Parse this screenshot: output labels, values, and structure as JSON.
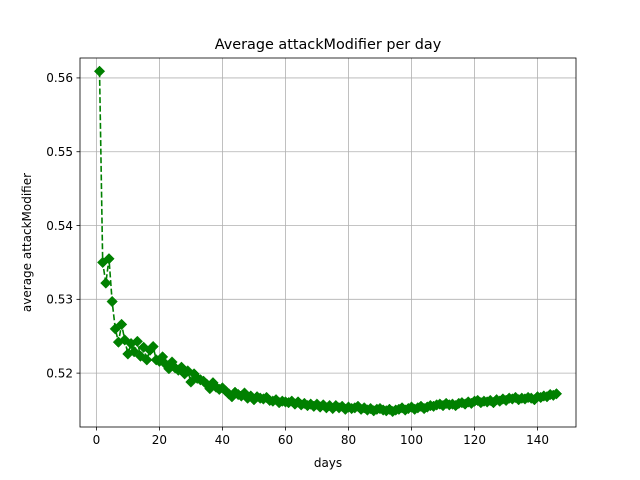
{
  "chart_data": {
    "type": "line",
    "title": "Average attackModifier per day",
    "xlabel": "days",
    "ylabel": "average attackModifier",
    "xlim": [
      -5.2,
      152.2
    ],
    "ylim": [
      0.5127,
      0.5627
    ],
    "x_ticks": [
      0,
      20,
      40,
      60,
      80,
      100,
      120,
      140
    ],
    "y_ticks": [
      0.52,
      0.53,
      0.54,
      0.55,
      0.56
    ],
    "grid": true,
    "series": [
      {
        "color": "#008000",
        "marker": "diamond",
        "linestyle": "dashed",
        "x": [
          1,
          2,
          3,
          4,
          5,
          6,
          7,
          8,
          9,
          10,
          11,
          12,
          13,
          14,
          15,
          16,
          17,
          18,
          19,
          20,
          21,
          22,
          23,
          24,
          25,
          26,
          27,
          28,
          29,
          30,
          31,
          32,
          33,
          34,
          35,
          36,
          37,
          38,
          39,
          40,
          41,
          42,
          43,
          44,
          45,
          46,
          47,
          48,
          49,
          50,
          51,
          52,
          53,
          54,
          55,
          56,
          57,
          58,
          59,
          60,
          61,
          62,
          63,
          64,
          65,
          66,
          67,
          68,
          69,
          70,
          71,
          72,
          73,
          74,
          75,
          76,
          77,
          78,
          79,
          80,
          81,
          82,
          83,
          84,
          85,
          86,
          87,
          88,
          89,
          90,
          91,
          92,
          93,
          94,
          95,
          96,
          97,
          98,
          99,
          100,
          101,
          102,
          103,
          104,
          105,
          106,
          107,
          108,
          109,
          110,
          111,
          112,
          113,
          114,
          115,
          116,
          117,
          118,
          119,
          120,
          121,
          122,
          123,
          124,
          125,
          126,
          127,
          128,
          129,
          130,
          131,
          132,
          133,
          134,
          135,
          136,
          137,
          138,
          139,
          140,
          141,
          142,
          143,
          144,
          145,
          146
        ],
        "y": [
          0.5609,
          0.535,
          0.5322,
          0.5355,
          0.5297,
          0.526,
          0.5242,
          0.5266,
          0.5245,
          0.5226,
          0.524,
          0.5229,
          0.5243,
          0.5223,
          0.5235,
          0.5218,
          0.5231,
          0.5236,
          0.5218,
          0.5216,
          0.5222,
          0.5212,
          0.5206,
          0.5215,
          0.5207,
          0.5204,
          0.5208,
          0.5199,
          0.5203,
          0.5188,
          0.5199,
          0.5193,
          0.5191,
          0.5189,
          0.5185,
          0.5179,
          0.5187,
          0.5181,
          0.5178,
          0.518,
          0.5176,
          0.5172,
          0.5168,
          0.5174,
          0.5171,
          0.5169,
          0.5173,
          0.5166,
          0.5169,
          0.5164,
          0.5168,
          0.5166,
          0.5165,
          0.5167,
          0.5163,
          0.5162,
          0.5164,
          0.516,
          0.5162,
          0.5161,
          0.516,
          0.5162,
          0.5158,
          0.5161,
          0.5157,
          0.5159,
          0.5156,
          0.5158,
          0.5155,
          0.5158,
          0.5154,
          0.5157,
          0.5153,
          0.5156,
          0.5152,
          0.5156,
          0.5153,
          0.5155,
          0.5151,
          0.5154,
          0.5152,
          0.5153,
          0.5155,
          0.5151,
          0.5153,
          0.515,
          0.5152,
          0.5149,
          0.5151,
          0.5152,
          0.515,
          0.5149,
          0.5151,
          0.5148,
          0.515,
          0.5151,
          0.5153,
          0.515,
          0.5152,
          0.5154,
          0.5151,
          0.5153,
          0.5155,
          0.5152,
          0.5154,
          0.5156,
          0.5155,
          0.5157,
          0.5158,
          0.5156,
          0.5159,
          0.5157,
          0.5158,
          0.5156,
          0.5159,
          0.516,
          0.5158,
          0.5161,
          0.5159,
          0.5162,
          0.5163,
          0.516,
          0.5162,
          0.5161,
          0.5163,
          0.516,
          0.5164,
          0.5162,
          0.5165,
          0.5163,
          0.5166,
          0.5165,
          0.5167,
          0.5164,
          0.5166,
          0.5165,
          0.5167,
          0.5166,
          0.5164,
          0.5168,
          0.5167,
          0.5169,
          0.5168,
          0.5171,
          0.517,
          0.5172
        ]
      }
    ]
  }
}
